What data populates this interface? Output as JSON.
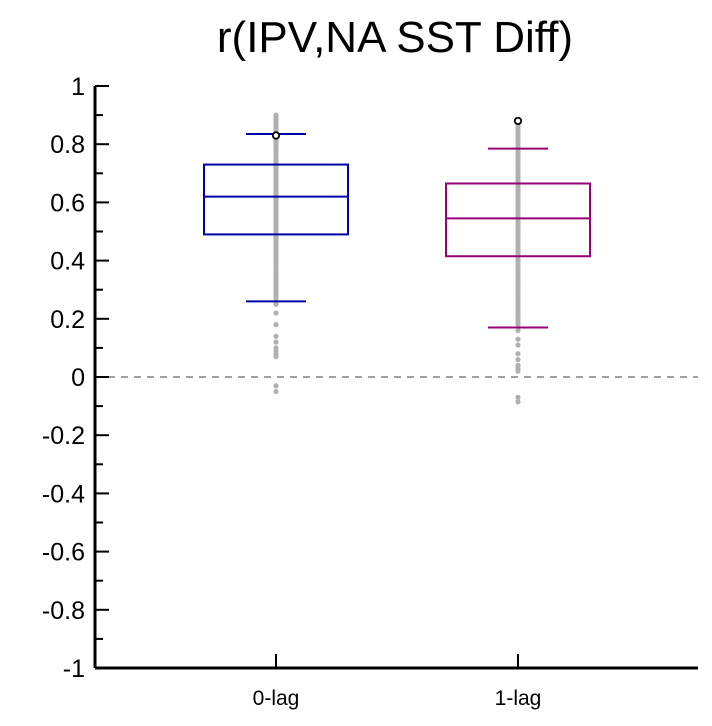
{
  "chart_data": {
    "type": "box",
    "title": "r(IPV,NA SST Diff)",
    "xlabel": "",
    "ylabel": "",
    "ylim": [
      -1,
      1
    ],
    "y_major_ticks": [
      -1,
      -0.8,
      -0.6,
      -0.4,
      -0.2,
      0,
      0.2,
      0.4,
      0.6,
      0.8,
      1
    ],
    "y_tick_labels": [
      "-1",
      "-0.8",
      "-0.6",
      "-0.4",
      "-0.2",
      "0",
      "0.2",
      "0.4",
      "0.6",
      "0.8",
      "1"
    ],
    "y_minor_step": 0.1,
    "categories": [
      "0-lag",
      "1-lag"
    ],
    "reference_line": {
      "y": 0,
      "style": "dashed",
      "color": "#808080"
    },
    "series": [
      {
        "name": "0-lag",
        "color": "#0000a8",
        "whisker_low": 0.26,
        "q1": 0.49,
        "median": 0.62,
        "q3": 0.73,
        "whisker_high": 0.835,
        "outliers": [
          0.83
        ],
        "scatter_range": [
          0.27,
          0.9
        ],
        "scatter_extra": [
          0.25,
          0.22,
          0.18,
          0.14,
          0.12,
          0.1,
          0.09,
          0.08,
          0.07,
          -0.03,
          -0.05
        ]
      },
      {
        "name": "1-lag",
        "color": "#990077",
        "whisker_low": 0.17,
        "q1": 0.415,
        "median": 0.545,
        "q3": 0.665,
        "whisker_high": 0.785,
        "outliers": [
          0.88
        ],
        "scatter_range": [
          0.18,
          0.87
        ],
        "scatter_extra": [
          0.16,
          0.13,
          0.11,
          0.08,
          0.06,
          0.04,
          0.03,
          0.02,
          -0.07,
          -0.085
        ]
      }
    ],
    "scatter_color": "#b0b0b0"
  }
}
